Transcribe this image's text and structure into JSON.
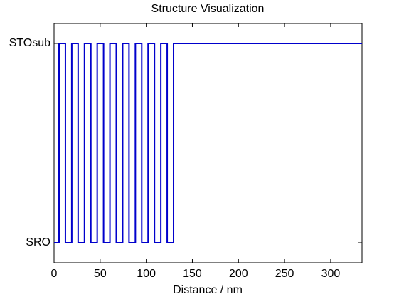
{
  "chart_data": {
    "type": "line",
    "title": "Structure Visualization",
    "x_label": "Distance / nm",
    "x": [
      0,
      5.4,
      5.4,
      12.3,
      12.3,
      19.2,
      19.2,
      26.1,
      26.1,
      33.0,
      33.0,
      39.9,
      39.9,
      46.8,
      46.8,
      53.7,
      53.7,
      60.6,
      60.6,
      67.5,
      67.5,
      74.4,
      74.4,
      81.3,
      81.3,
      88.2,
      88.2,
      95.1,
      95.1,
      102.0,
      102.0,
      108.9,
      108.9,
      115.8,
      115.8,
      122.7,
      122.7,
      129.6,
      129.6,
      334
    ],
    "series": [
      {
        "color": "#0000cc",
        "values": [
          1,
          1,
          2,
          2,
          1,
          1,
          2,
          2,
          1,
          1,
          2,
          2,
          1,
          1,
          2,
          2,
          1,
          1,
          2,
          2,
          1,
          1,
          2,
          2,
          1,
          1,
          2,
          2,
          1,
          1,
          2,
          2,
          1,
          1,
          2,
          2,
          1,
          1,
          2,
          2
        ]
      }
    ],
    "xlim": [
      0,
      334
    ],
    "xticks": [
      0,
      50,
      100,
      150,
      200,
      250,
      300
    ],
    "ylim": [
      0.9,
      2.1
    ],
    "yticks": [
      {
        "value": 1,
        "label": "SRO"
      },
      {
        "value": 2,
        "label": "STOsub"
      }
    ],
    "grid": false
  }
}
